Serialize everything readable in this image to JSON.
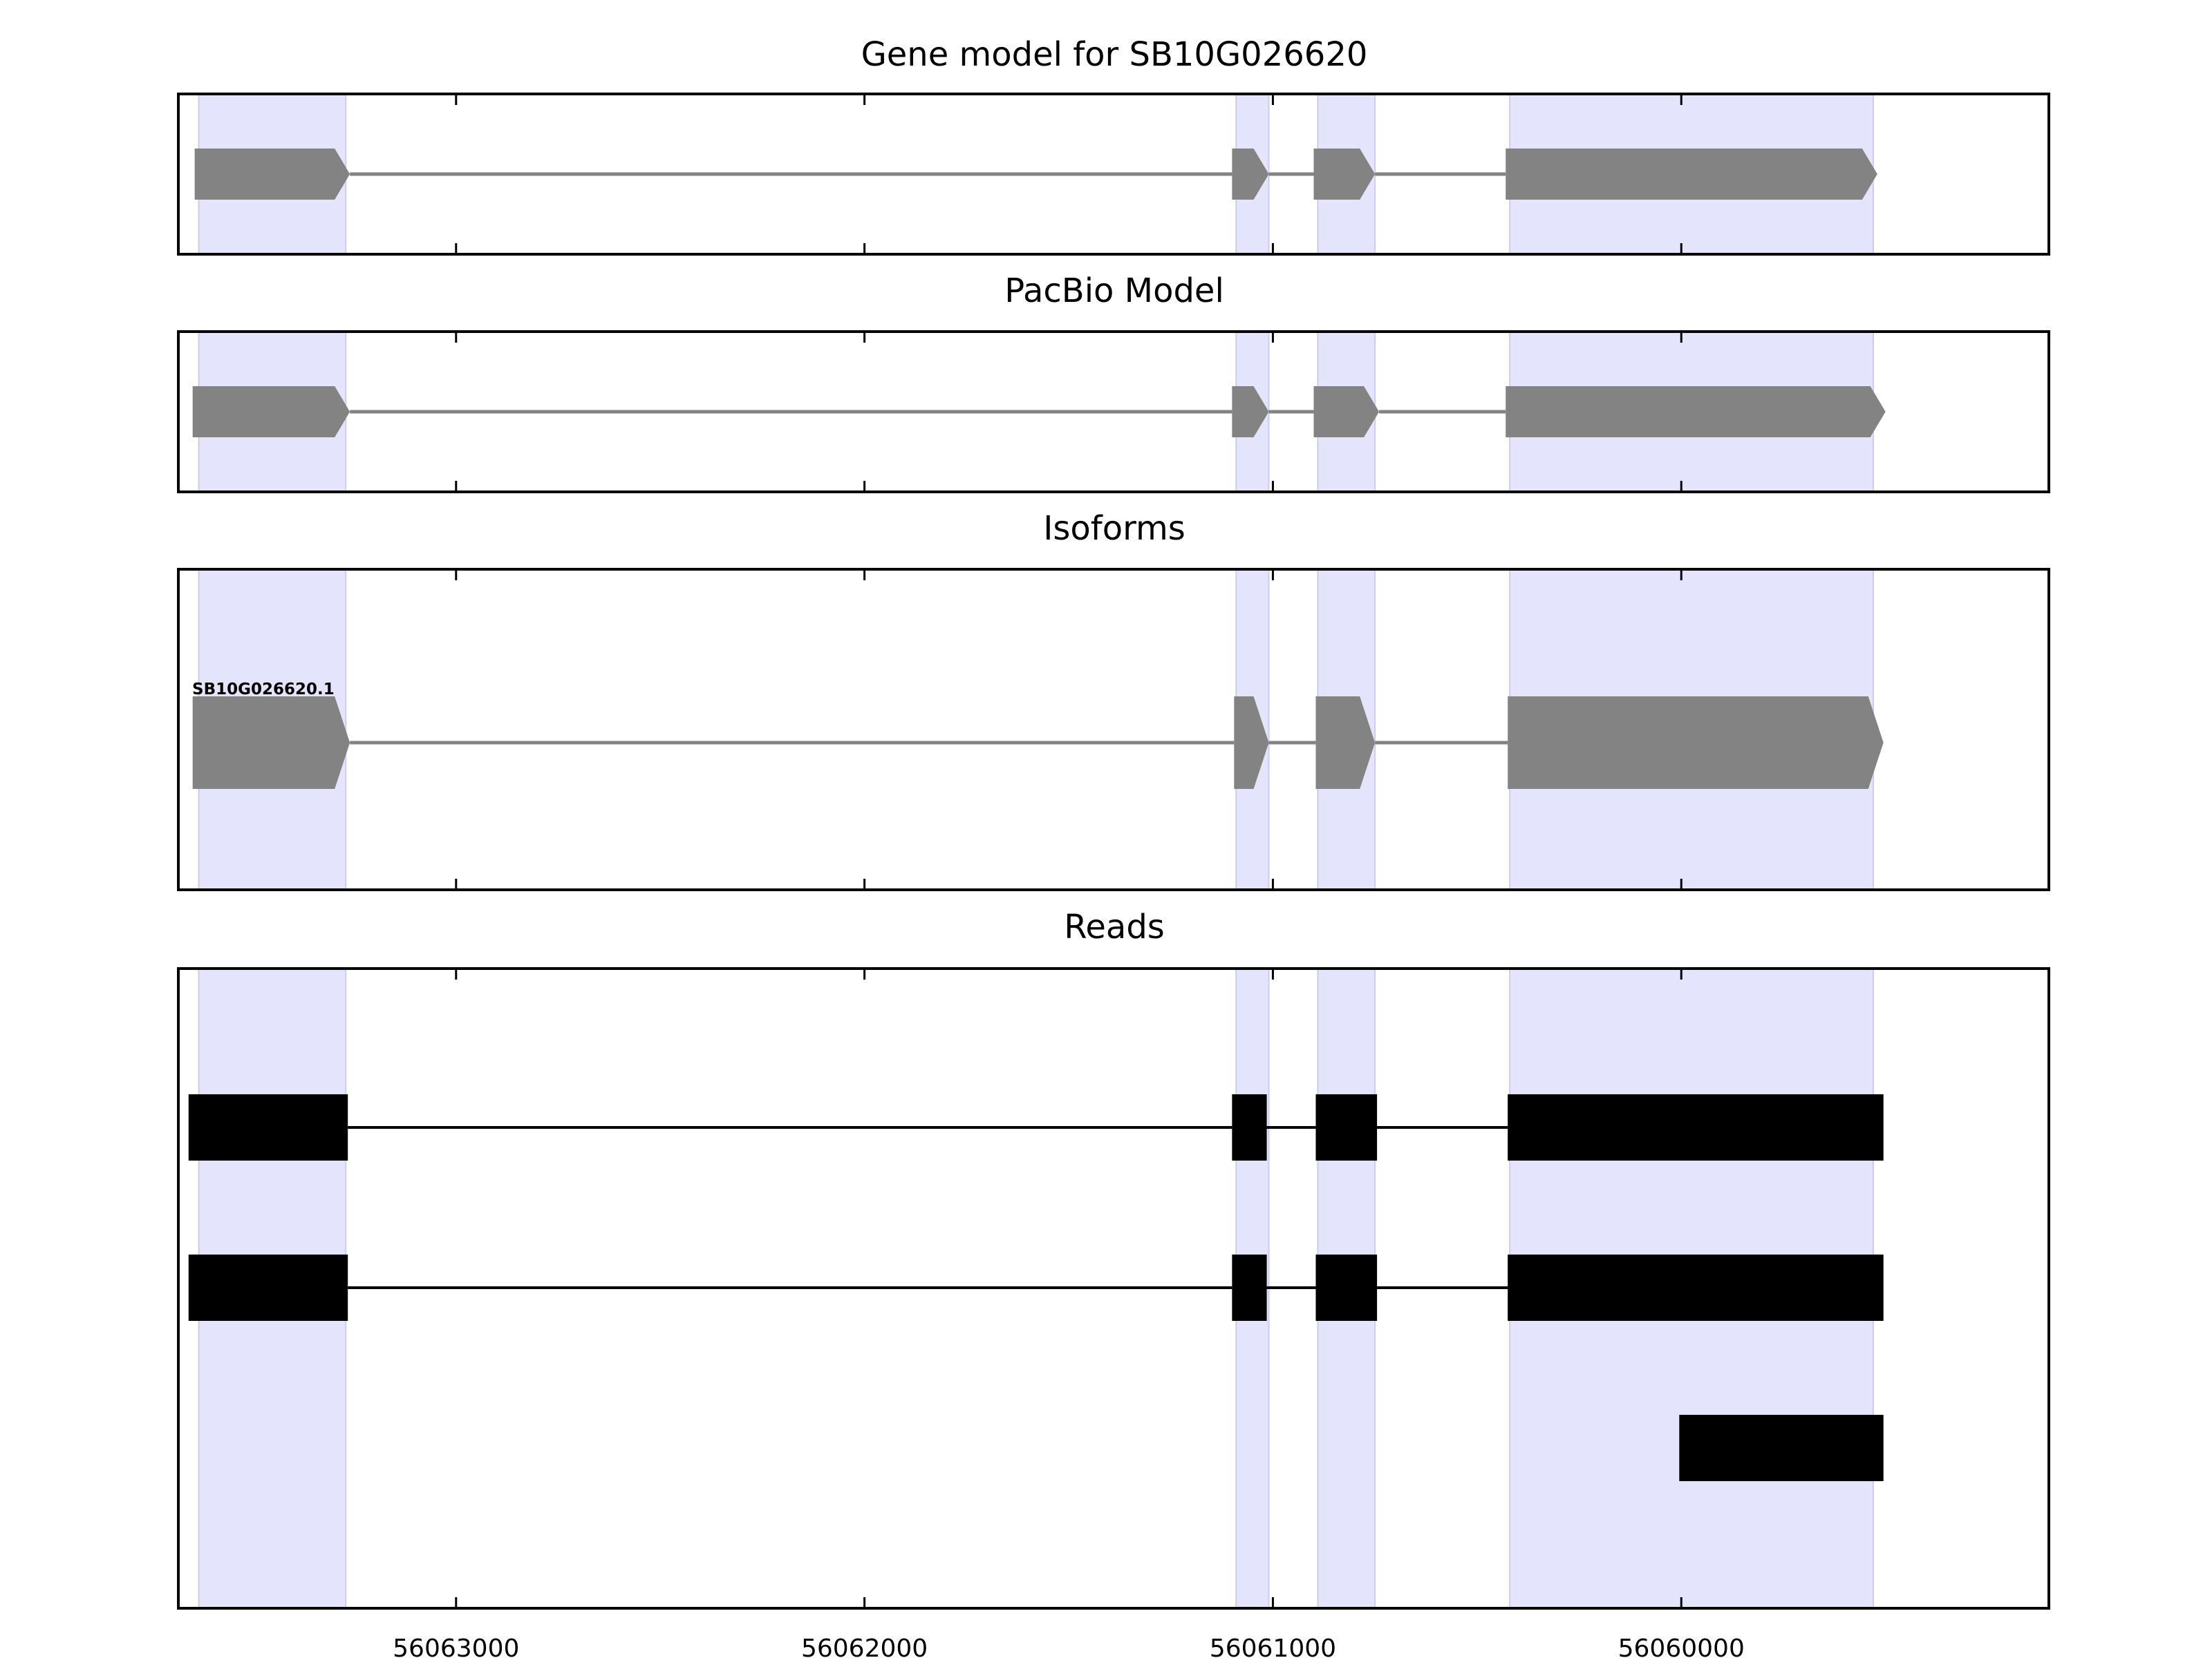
{
  "chart_data": {
    "type": "gene-track",
    "x_axis": {
      "range": [
        56063680,
        56059100
      ],
      "ticks": [
        56063000,
        56062000,
        56061000,
        56060000
      ],
      "tick_labels": [
        "56063000",
        "56062000",
        "56061000",
        "56060000"
      ]
    },
    "highlight_regions": [
      [
        56063630,
        56063270
      ],
      [
        56061090,
        56061010
      ],
      [
        56060890,
        56060750
      ],
      [
        56060420,
        56059530
      ]
    ],
    "colors": {
      "highlight": "#e4e4fc",
      "highlight_edge": "#ccccee",
      "model": "#838383",
      "read": "#000000",
      "intron": "#838383"
    },
    "panels": [
      {
        "key": "gene_model",
        "title": "Gene model for SB10G026620",
        "kind": "arrow",
        "tracks": [
          {
            "exons": [
              [
                56063640,
                56063260
              ],
              [
                56061100,
                56061010
              ],
              [
                56060900,
                56060750
              ],
              [
                56060430,
                56059520
              ]
            ]
          }
        ]
      },
      {
        "key": "pacbio",
        "title": "PacBio Model",
        "kind": "arrow",
        "tracks": [
          {
            "exons": [
              [
                56063645,
                56063260
              ],
              [
                56061100,
                56061010
              ],
              [
                56060900,
                56060740
              ],
              [
                56060430,
                56059500
              ]
            ]
          }
        ]
      },
      {
        "key": "isoforms",
        "title": "Isoforms",
        "kind": "arrow",
        "tracks": [
          {
            "label": "SB10G026620.1",
            "exons": [
              [
                56063645,
                56063260
              ],
              [
                56061095,
                56061010
              ],
              [
                56060895,
                56060750
              ],
              [
                56060425,
                56059505
              ]
            ]
          }
        ]
      },
      {
        "key": "reads",
        "title": "Reads",
        "kind": "block",
        "tracks": [
          {
            "exons": [
              [
                56063655,
                56063265
              ],
              [
                56061100,
                56061015
              ],
              [
                56060895,
                56060745
              ],
              [
                56060425,
                56059505
              ]
            ]
          },
          {
            "exons": [
              [
                56063655,
                56063265
              ],
              [
                56061100,
                56061015
              ],
              [
                56060895,
                56060745
              ],
              [
                56060425,
                56059505
              ]
            ]
          },
          {
            "exons": [
              [
                56060005,
                56059505
              ]
            ]
          }
        ]
      }
    ]
  }
}
